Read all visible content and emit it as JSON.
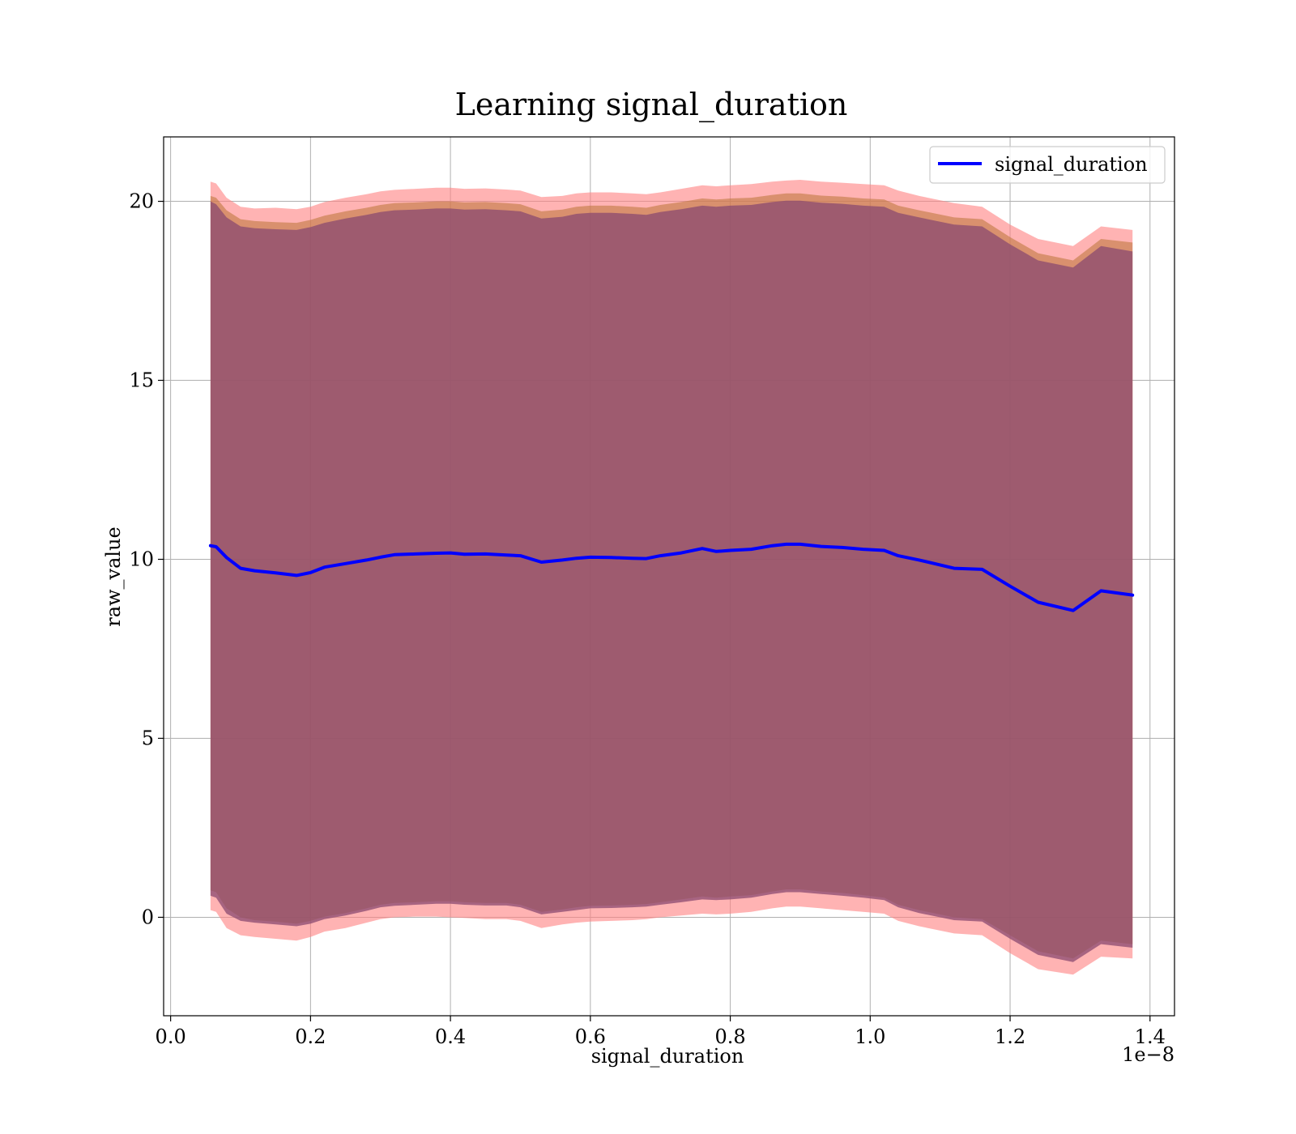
{
  "chart_data": {
    "type": "line",
    "title": "Learning signal_duration",
    "xlabel": "signal_duration",
    "ylabel": "raw_value",
    "x_offset_label": "1e−8",
    "x_tick_labels": [
      "0.0",
      "0.2",
      "0.4",
      "0.6",
      "0.8",
      "1.0",
      "1.2",
      "1.4"
    ],
    "x_ticks": [
      0.0,
      0.2,
      0.4,
      0.6,
      0.8,
      1.0,
      1.2,
      1.4
    ],
    "y_tick_labels": [
      "0",
      "5",
      "10",
      "15",
      "20"
    ],
    "y_ticks": [
      0,
      5,
      10,
      15,
      20
    ],
    "xlim": [
      -0.01,
      1.435
    ],
    "ylim": [
      -2.75,
      21.8
    ],
    "grid": true,
    "legend_position": "top-right",
    "legend": [
      "signal_duration"
    ],
    "x": [
      0.057,
      0.065,
      0.08,
      0.1,
      0.12,
      0.15,
      0.18,
      0.2,
      0.22,
      0.25,
      0.28,
      0.3,
      0.32,
      0.35,
      0.38,
      0.4,
      0.42,
      0.45,
      0.48,
      0.5,
      0.53,
      0.56,
      0.58,
      0.6,
      0.63,
      0.66,
      0.68,
      0.7,
      0.73,
      0.76,
      0.78,
      0.8,
      0.83,
      0.86,
      0.88,
      0.9,
      0.93,
      0.96,
      0.99,
      1.02,
      1.04,
      1.07,
      1.12,
      1.16,
      1.2,
      1.24,
      1.29,
      1.33,
      1.375
    ],
    "series": [
      {
        "name": "signal_duration",
        "color": "#0000ff",
        "y": [
          10.38,
          10.35,
          10.05,
          9.75,
          9.68,
          9.62,
          9.55,
          9.63,
          9.78,
          9.88,
          9.98,
          10.06,
          10.13,
          10.15,
          10.17,
          10.18,
          10.14,
          10.15,
          10.12,
          10.1,
          9.92,
          9.98,
          10.03,
          10.06,
          10.05,
          10.03,
          10.02,
          10.1,
          10.18,
          10.3,
          10.22,
          10.25,
          10.28,
          10.38,
          10.42,
          10.42,
          10.36,
          10.33,
          10.28,
          10.25,
          10.1,
          9.98,
          9.75,
          9.72,
          9.25,
          8.8,
          8.57,
          9.12,
          9.0
        ]
      }
    ],
    "bands": [
      {
        "color": "#ff8080",
        "opacity": 0.6,
        "upper": [
          20.55,
          20.5,
          20.1,
          19.85,
          19.8,
          19.82,
          19.78,
          19.85,
          19.98,
          20.1,
          20.2,
          20.28,
          20.32,
          20.35,
          20.38,
          20.38,
          20.35,
          20.36,
          20.33,
          20.3,
          20.12,
          20.15,
          20.22,
          20.25,
          20.25,
          20.22,
          20.2,
          20.25,
          20.35,
          20.45,
          20.42,
          20.45,
          20.48,
          20.55,
          20.58,
          20.6,
          20.55,
          20.52,
          20.48,
          20.45,
          20.3,
          20.15,
          19.95,
          19.85,
          19.35,
          18.95,
          18.75,
          19.3,
          19.2
        ],
        "lower": [
          0.2,
          0.15,
          -0.3,
          -0.5,
          -0.55,
          -0.6,
          -0.65,
          -0.55,
          -0.4,
          -0.3,
          -0.15,
          -0.05,
          0.0,
          0.02,
          0.02,
          0.0,
          -0.02,
          -0.05,
          -0.05,
          -0.1,
          -0.3,
          -0.2,
          -0.15,
          -0.12,
          -0.1,
          -0.08,
          -0.05,
          0.0,
          0.05,
          0.1,
          0.08,
          0.1,
          0.15,
          0.25,
          0.3,
          0.3,
          0.25,
          0.2,
          0.15,
          0.1,
          -0.1,
          -0.25,
          -0.45,
          -0.5,
          -1.0,
          -1.45,
          -1.6,
          -1.1,
          -1.15
        ]
      },
      {
        "color": "#c07840",
        "opacity": 0.6,
        "upper": [
          20.15,
          20.1,
          19.75,
          19.5,
          19.45,
          19.42,
          19.4,
          19.48,
          19.6,
          19.72,
          19.82,
          19.9,
          19.95,
          19.97,
          20.0,
          20.0,
          19.97,
          19.98,
          19.95,
          19.92,
          19.72,
          19.77,
          19.85,
          19.88,
          19.88,
          19.85,
          19.82,
          19.9,
          19.98,
          20.08,
          20.05,
          20.08,
          20.1,
          20.18,
          20.22,
          20.22,
          20.16,
          20.13,
          20.08,
          20.05,
          19.88,
          19.75,
          19.55,
          19.5,
          19.0,
          18.55,
          18.35,
          18.95,
          18.85
        ],
        "lower": [
          0.75,
          0.7,
          0.25,
          0.0,
          -0.08,
          -0.12,
          -0.18,
          -0.1,
          0.02,
          0.12,
          0.25,
          0.35,
          0.4,
          0.42,
          0.45,
          0.45,
          0.42,
          0.4,
          0.4,
          0.35,
          0.15,
          0.22,
          0.28,
          0.32,
          0.33,
          0.35,
          0.37,
          0.42,
          0.5,
          0.58,
          0.55,
          0.58,
          0.62,
          0.72,
          0.78,
          0.78,
          0.72,
          0.68,
          0.62,
          0.55,
          0.35,
          0.2,
          0.0,
          -0.05,
          -0.5,
          -0.95,
          -1.15,
          -0.65,
          -0.75
        ]
      },
      {
        "color": "#8a4a70",
        "opacity": 0.75,
        "upper": [
          20.0,
          19.92,
          19.55,
          19.3,
          19.25,
          19.22,
          19.2,
          19.28,
          19.4,
          19.52,
          19.62,
          19.7,
          19.75,
          19.77,
          19.8,
          19.8,
          19.77,
          19.78,
          19.75,
          19.72,
          19.52,
          19.57,
          19.65,
          19.68,
          19.68,
          19.65,
          19.62,
          19.7,
          19.78,
          19.88,
          19.85,
          19.88,
          19.9,
          19.98,
          20.02,
          20.02,
          19.96,
          19.93,
          19.88,
          19.85,
          19.68,
          19.55,
          19.35,
          19.3,
          18.8,
          18.35,
          18.15,
          18.75,
          18.6
        ],
        "lower": [
          0.6,
          0.55,
          0.1,
          -0.1,
          -0.15,
          -0.2,
          -0.25,
          -0.18,
          -0.05,
          0.05,
          0.18,
          0.28,
          0.32,
          0.35,
          0.38,
          0.38,
          0.35,
          0.33,
          0.33,
          0.28,
          0.08,
          0.15,
          0.2,
          0.25,
          0.26,
          0.28,
          0.3,
          0.35,
          0.42,
          0.5,
          0.48,
          0.5,
          0.55,
          0.65,
          0.7,
          0.7,
          0.65,
          0.6,
          0.55,
          0.48,
          0.28,
          0.12,
          -0.08,
          -0.12,
          -0.6,
          -1.05,
          -1.25,
          -0.75,
          -0.85
        ]
      }
    ]
  }
}
